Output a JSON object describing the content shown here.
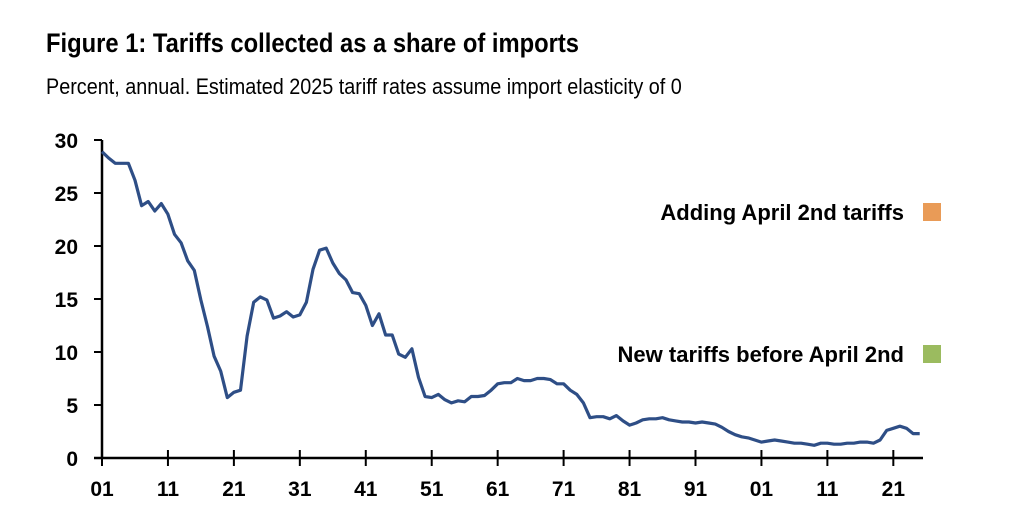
{
  "chart_data": {
    "type": "line",
    "title": "Figure 1: Tariffs collected as a share of imports",
    "subtitle": "Percent, annual. Estimated 2025 tariff rates assume import elasticity of 0",
    "xlabel": "",
    "ylabel": "",
    "ylim": [
      0,
      30
    ],
    "xlim": [
      1901,
      2025.5
    ],
    "yticks": [
      "0",
      "5",
      "10",
      "15",
      "20",
      "25",
      "30"
    ],
    "xticks": [
      {
        "year": 1901,
        "label": "01"
      },
      {
        "year": 1911,
        "label": "11"
      },
      {
        "year": 1921,
        "label": "21"
      },
      {
        "year": 1931,
        "label": "31"
      },
      {
        "year": 1941,
        "label": "41"
      },
      {
        "year": 1951,
        "label": "51"
      },
      {
        "year": 1961,
        "label": "61"
      },
      {
        "year": 1971,
        "label": "71"
      },
      {
        "year": 1981,
        "label": "81"
      },
      {
        "year": 1991,
        "label": "91"
      },
      {
        "year": 2001,
        "label": "01"
      },
      {
        "year": 2011,
        "label": "11"
      },
      {
        "year": 2021,
        "label": "21"
      }
    ],
    "legend": [
      {
        "label": "Adding April 2nd tariffs",
        "color": "#E99B57"
      },
      {
        "label": "New tariffs before April 2nd",
        "color": "#9BBB5F"
      }
    ],
    "legend_placement": "right",
    "series": [
      {
        "name": "Tariffs collected as a share of imports",
        "color": "#2E4E86",
        "start_year": 1901,
        "values": [
          28.9,
          28.3,
          27.8,
          27.8,
          27.8,
          26.2,
          23.8,
          24.2,
          23.3,
          24.0,
          23.0,
          21.1,
          20.3,
          18.6,
          17.7,
          14.9,
          12.4,
          9.6,
          8.2,
          5.7,
          6.2,
          6.4,
          11.5,
          14.7,
          15.2,
          14.9,
          13.2,
          13.4,
          13.8,
          13.3,
          13.5,
          14.7,
          17.8,
          19.6,
          19.8,
          18.4,
          17.4,
          16.8,
          15.6,
          15.5,
          14.4,
          12.5,
          13.6,
          11.6,
          11.6,
          9.8,
          9.5,
          10.3,
          7.6,
          5.8,
          5.7,
          6.0,
          5.5,
          5.2,
          5.4,
          5.3,
          5.8,
          5.8,
          5.9,
          6.4,
          7.0,
          7.1,
          7.1,
          7.5,
          7.3,
          7.3,
          7.5,
          7.5,
          7.4,
          7.0,
          7.0,
          6.4,
          6.0,
          5.2,
          3.8,
          3.9,
          3.9,
          3.7,
          4.0,
          3.5,
          3.1,
          3.3,
          3.6,
          3.7,
          3.7,
          3.8,
          3.6,
          3.5,
          3.4,
          3.4,
          3.3,
          3.4,
          3.3,
          3.2,
          2.9,
          2.5,
          2.2,
          2.0,
          1.9,
          1.7,
          1.5,
          1.6,
          1.7,
          1.6,
          1.5,
          1.4,
          1.4,
          1.3,
          1.2,
          1.4,
          1.4,
          1.3,
          1.3,
          1.4,
          1.4,
          1.5,
          1.5,
          1.4,
          1.7,
          2.6,
          2.8,
          3.0,
          2.8,
          2.3,
          2.3
        ]
      }
    ]
  }
}
